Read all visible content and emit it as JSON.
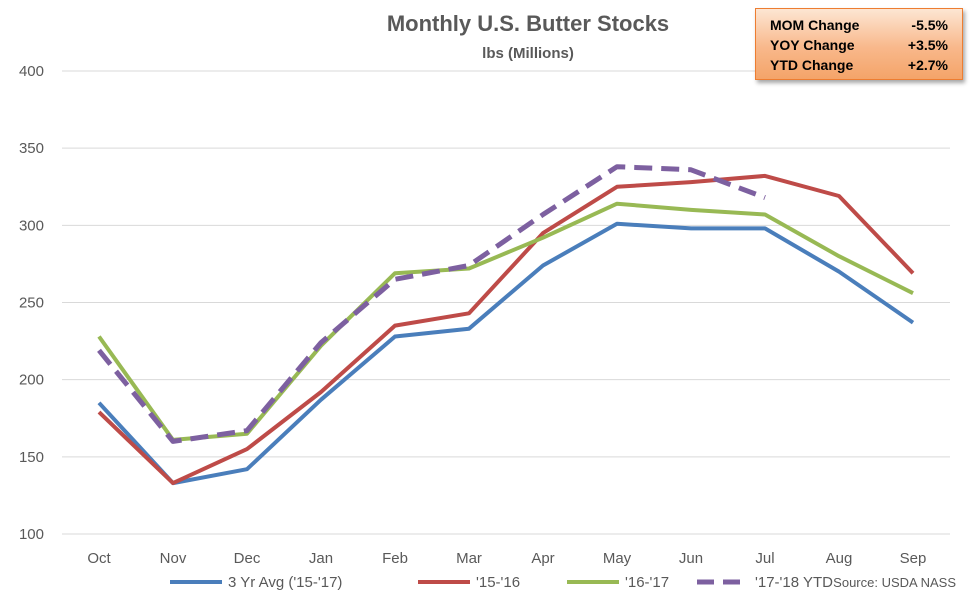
{
  "chart_data": {
    "type": "line",
    "title": "Monthly U.S. Butter Stocks",
    "subtitle": "lbs (Millions)",
    "categories": [
      "Oct",
      "Nov",
      "Dec",
      "Jan",
      "Feb",
      "Mar",
      "Apr",
      "May",
      "Jun",
      "Jul",
      "Aug",
      "Sep"
    ],
    "ylim": [
      100,
      400
    ],
    "yticks": [
      100,
      150,
      200,
      250,
      300,
      350,
      400
    ],
    "grid": true,
    "legend_position": "bottom",
    "series": [
      {
        "name": "3 Yr Avg ('15-'17)",
        "color": "#4a7ebb",
        "dashed": false,
        "values": [
          185,
          133,
          142,
          187,
          228,
          233,
          274,
          301,
          298,
          298,
          270,
          237
        ]
      },
      {
        "name": "'15-'16",
        "color": "#be4b48",
        "dashed": false,
        "values": [
          179,
          133,
          155,
          192,
          235,
          243,
          295,
          325,
          328,
          332,
          319,
          269
        ]
      },
      {
        "name": "'16-'17",
        "color": "#98b954",
        "dashed": false,
        "values": [
          228,
          161,
          165,
          222,
          269,
          272,
          292,
          314,
          310,
          307,
          280,
          256
        ]
      },
      {
        "name": "'17-'18 YTD",
        "color": "#7d60a0",
        "dashed": true,
        "values": [
          219,
          160,
          167,
          224,
          265,
          274,
          307,
          338,
          336,
          318,
          null,
          null
        ]
      }
    ],
    "source": "Source: USDA NASS"
  },
  "stats": [
    {
      "label": "MOM Change",
      "value": "-5.5%"
    },
    {
      "label": "YOY Change",
      "value": "+3.5%"
    },
    {
      "label": "YTD Change",
      "value": "+2.7%"
    }
  ]
}
